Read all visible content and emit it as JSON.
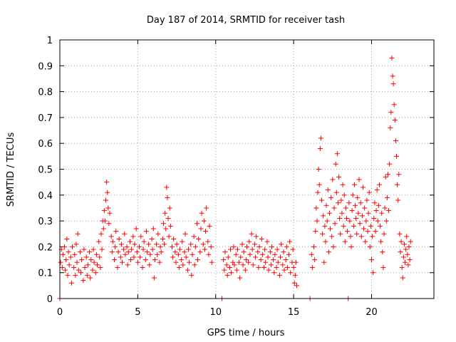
{
  "chart_data": {
    "type": "scatter",
    "title": "Day 187 of 2014, SRMTID for receiver tash",
    "xlabel": "GPS time / hours",
    "ylabel": "SRMTID / TECUs",
    "xlim": [
      0,
      24
    ],
    "ylim": [
      0,
      1
    ],
    "grid": true,
    "x_ticks": [
      {
        "value": 0,
        "label": "0"
      },
      {
        "value": 5,
        "label": "5"
      },
      {
        "value": 10,
        "label": "10"
      },
      {
        "value": 15,
        "label": "15"
      },
      {
        "value": 20,
        "label": "20"
      }
    ],
    "y_ticks": [
      {
        "value": 0,
        "label": "0"
      },
      {
        "value": 0.1,
        "label": "0.1"
      },
      {
        "value": 0.2,
        "label": "0.2"
      },
      {
        "value": 0.3,
        "label": "0.3"
      },
      {
        "value": 0.4,
        "label": "0.4"
      },
      {
        "value": 0.5,
        "label": "0.5"
      },
      {
        "value": 0.6,
        "label": "0.6"
      },
      {
        "value": 0.7,
        "label": "0.7"
      },
      {
        "value": 0.8,
        "label": "0.8"
      },
      {
        "value": 0.9,
        "label": "0.9"
      },
      {
        "value": 1,
        "label": "1"
      }
    ],
    "marker_color": "#ff0000",
    "marker": "plus",
    "points": [
      [
        0.0,
        0.0
      ],
      [
        0.05,
        0.14
      ],
      [
        0.1,
        0.19
      ],
      [
        0.15,
        0.12
      ],
      [
        0.2,
        0.17
      ],
      [
        0.3,
        0.2
      ],
      [
        0.35,
        0.11
      ],
      [
        0.4,
        0.15
      ],
      [
        0.45,
        0.23
      ],
      [
        0.5,
        0.09
      ],
      [
        0.55,
        0.18
      ],
      [
        0.6,
        0.13
      ],
      [
        0.7,
        0.16
      ],
      [
        0.75,
        0.06
      ],
      [
        0.8,
        0.2
      ],
      [
        0.9,
        0.12
      ],
      [
        0.95,
        0.17
      ],
      [
        1.0,
        0.09
      ],
      [
        1.05,
        0.21
      ],
      [
        1.1,
        0.14
      ],
      [
        1.15,
        0.25
      ],
      [
        1.2,
        0.11
      ],
      [
        1.3,
        0.18
      ],
      [
        1.35,
        0.1
      ],
      [
        1.4,
        0.15
      ],
      [
        1.5,
        0.07
      ],
      [
        1.55,
        0.19
      ],
      [
        1.6,
        0.12
      ],
      [
        1.7,
        0.16
      ],
      [
        1.75,
        0.09
      ],
      [
        1.8,
        0.13
      ],
      [
        1.9,
        0.18
      ],
      [
        1.95,
        0.08
      ],
      [
        2.0,
        0.15
      ],
      [
        2.1,
        0.11
      ],
      [
        2.15,
        0.19
      ],
      [
        2.2,
        0.14
      ],
      [
        2.3,
        0.1
      ],
      [
        2.35,
        0.17
      ],
      [
        2.4,
        0.13
      ],
      [
        2.5,
        0.22
      ],
      [
        2.55,
        0.16
      ],
      [
        2.6,
        0.12
      ],
      [
        2.65,
        0.25
      ],
      [
        2.7,
        0.19
      ],
      [
        2.75,
        0.3
      ],
      [
        2.8,
        0.27
      ],
      [
        2.85,
        0.34
      ],
      [
        2.9,
        0.3
      ],
      [
        2.95,
        0.38
      ],
      [
        3.0,
        0.45
      ],
      [
        3.05,
        0.41
      ],
      [
        3.1,
        0.35
      ],
      [
        3.15,
        0.29
      ],
      [
        3.2,
        0.33
      ],
      [
        3.3,
        0.24
      ],
      [
        3.35,
        0.18
      ],
      [
        3.4,
        0.22
      ],
      [
        3.5,
        0.15
      ],
      [
        3.55,
        0.2
      ],
      [
        3.6,
        0.26
      ],
      [
        3.7,
        0.12
      ],
      [
        3.75,
        0.18
      ],
      [
        3.8,
        0.23
      ],
      [
        3.9,
        0.16
      ],
      [
        3.95,
        0.21
      ],
      [
        4.0,
        0.14
      ],
      [
        4.1,
        0.19
      ],
      [
        4.15,
        0.25
      ],
      [
        4.2,
        0.17
      ],
      [
        4.3,
        0.2
      ],
      [
        4.35,
        0.13
      ],
      [
        4.4,
        0.18
      ],
      [
        4.5,
        0.22
      ],
      [
        4.55,
        0.15
      ],
      [
        4.6,
        0.19
      ],
      [
        4.7,
        0.24
      ],
      [
        4.75,
        0.16
      ],
      [
        4.8,
        0.21
      ],
      [
        4.9,
        0.27
      ],
      [
        4.95,
        0.18
      ],
      [
        5.0,
        0.14
      ],
      [
        5.1,
        0.2
      ],
      [
        5.15,
        0.16
      ],
      [
        5.2,
        0.24
      ],
      [
        5.3,
        0.12
      ],
      [
        5.35,
        0.19
      ],
      [
        5.4,
        0.22
      ],
      [
        5.5,
        0.15
      ],
      [
        5.55,
        0.26
      ],
      [
        5.6,
        0.18
      ],
      [
        5.7,
        0.21
      ],
      [
        5.75,
        0.13
      ],
      [
        5.8,
        0.17
      ],
      [
        5.9,
        0.23
      ],
      [
        5.95,
        0.19
      ],
      [
        6.0,
        0.27
      ],
      [
        6.05,
        0.08
      ],
      [
        6.1,
        0.15
      ],
      [
        6.2,
        0.21
      ],
      [
        6.25,
        0.17
      ],
      [
        6.3,
        0.25
      ],
      [
        6.4,
        0.14
      ],
      [
        6.45,
        0.2
      ],
      [
        6.5,
        0.18
      ],
      [
        6.6,
        0.23
      ],
      [
        6.65,
        0.29
      ],
      [
        6.7,
        0.21
      ],
      [
        6.75,
        0.33
      ],
      [
        6.8,
        0.27
      ],
      [
        6.85,
        0.43
      ],
      [
        6.9,
        0.39
      ],
      [
        6.95,
        0.31
      ],
      [
        7.0,
        0.24
      ],
      [
        7.05,
        0.35
      ],
      [
        7.1,
        0.28
      ],
      [
        7.2,
        0.2
      ],
      [
        7.25,
        0.16
      ],
      [
        7.3,
        0.23
      ],
      [
        7.4,
        0.18
      ],
      [
        7.45,
        0.14
      ],
      [
        7.5,
        0.21
      ],
      [
        7.6,
        0.17
      ],
      [
        7.65,
        0.12
      ],
      [
        7.7,
        0.19
      ],
      [
        7.8,
        0.15
      ],
      [
        7.85,
        0.22
      ],
      [
        7.9,
        0.13
      ],
      [
        8.0,
        0.18
      ],
      [
        8.05,
        0.25
      ],
      [
        8.1,
        0.16
      ],
      [
        8.2,
        0.11
      ],
      [
        8.25,
        0.19
      ],
      [
        8.3,
        0.14
      ],
      [
        8.4,
        0.21
      ],
      [
        8.45,
        0.09
      ],
      [
        8.5,
        0.17
      ],
      [
        8.6,
        0.24
      ],
      [
        8.65,
        0.13
      ],
      [
        8.7,
        0.2
      ],
      [
        8.8,
        0.29
      ],
      [
        8.85,
        0.15
      ],
      [
        8.9,
        0.23
      ],
      [
        9.0,
        0.18
      ],
      [
        9.05,
        0.27
      ],
      [
        9.1,
        0.33
      ],
      [
        9.2,
        0.21
      ],
      [
        9.25,
        0.3
      ],
      [
        9.3,
        0.19
      ],
      [
        9.35,
        0.26
      ],
      [
        9.4,
        0.35
      ],
      [
        9.5,
        0.22
      ],
      [
        9.55,
        0.17
      ],
      [
        9.6,
        0.28
      ],
      [
        9.7,
        0.2
      ],
      [
        9.75,
        0.14
      ],
      [
        10.4,
        0.0
      ],
      [
        10.5,
        0.15
      ],
      [
        10.55,
        0.11
      ],
      [
        10.6,
        0.18
      ],
      [
        10.7,
        0.13
      ],
      [
        10.75,
        0.09
      ],
      [
        10.8,
        0.16
      ],
      [
        10.9,
        0.12
      ],
      [
        10.95,
        0.19
      ],
      [
        11.0,
        0.1
      ],
      [
        11.1,
        0.14
      ],
      [
        11.15,
        0.2
      ],
      [
        11.2,
        0.13
      ],
      [
        11.3,
        0.17
      ],
      [
        11.35,
        0.11
      ],
      [
        11.4,
        0.19
      ],
      [
        11.5,
        0.14
      ],
      [
        11.55,
        0.08
      ],
      [
        11.6,
        0.16
      ],
      [
        11.7,
        0.21
      ],
      [
        11.75,
        0.13
      ],
      [
        11.8,
        0.18
      ],
      [
        11.9,
        0.11
      ],
      [
        11.95,
        0.15
      ],
      [
        12.0,
        0.2
      ],
      [
        12.1,
        0.14
      ],
      [
        12.15,
        0.22
      ],
      [
        12.2,
        0.17
      ],
      [
        12.3,
        0.25
      ],
      [
        12.35,
        0.19
      ],
      [
        12.4,
        0.13
      ],
      [
        12.5,
        0.21
      ],
      [
        12.55,
        0.16
      ],
      [
        12.6,
        0.24
      ],
      [
        12.7,
        0.18
      ],
      [
        12.75,
        0.12
      ],
      [
        12.8,
        0.2
      ],
      [
        12.9,
        0.15
      ],
      [
        12.95,
        0.23
      ],
      [
        13.0,
        0.17
      ],
      [
        13.1,
        0.12
      ],
      [
        13.15,
        0.19
      ],
      [
        13.2,
        0.14
      ],
      [
        13.3,
        0.22
      ],
      [
        13.35,
        0.16
      ],
      [
        13.4,
        0.11
      ],
      [
        13.5,
        0.18
      ],
      [
        13.55,
        0.13
      ],
      [
        13.6,
        0.2
      ],
      [
        13.7,
        0.15
      ],
      [
        13.75,
        0.1
      ],
      [
        13.8,
        0.17
      ],
      [
        13.9,
        0.12
      ],
      [
        13.95,
        0.19
      ],
      [
        14.0,
        0.14
      ],
      [
        14.1,
        0.09
      ],
      [
        14.15,
        0.16
      ],
      [
        14.2,
        0.21
      ],
      [
        14.3,
        0.13
      ],
      [
        14.35,
        0.18
      ],
      [
        14.4,
        0.11
      ],
      [
        14.5,
        0.15
      ],
      [
        14.55,
        0.2
      ],
      [
        14.6,
        0.12
      ],
      [
        14.7,
        0.17
      ],
      [
        14.75,
        0.22
      ],
      [
        14.8,
        0.1
      ],
      [
        14.9,
        0.14
      ],
      [
        14.95,
        0.19
      ],
      [
        15.0,
        0.12
      ],
      [
        15.05,
        0.06
      ],
      [
        15.1,
        0.09
      ],
      [
        15.15,
        0.14
      ],
      [
        15.2,
        0.05
      ],
      [
        16.05,
        0.0
      ],
      [
        16.15,
        0.17
      ],
      [
        16.2,
        0.12
      ],
      [
        16.3,
        0.2
      ],
      [
        16.35,
        0.15
      ],
      [
        16.4,
        0.26
      ],
      [
        16.45,
        0.35
      ],
      [
        16.5,
        0.3
      ],
      [
        16.55,
        0.41
      ],
      [
        16.6,
        0.5
      ],
      [
        16.65,
        0.44
      ],
      [
        16.7,
        0.58
      ],
      [
        16.75,
        0.62
      ],
      [
        16.8,
        0.38
      ],
      [
        16.85,
        0.25
      ],
      [
        16.9,
        0.32
      ],
      [
        16.95,
        0.14
      ],
      [
        17.0,
        0.28
      ],
      [
        17.05,
        0.22
      ],
      [
        17.1,
        0.36
      ],
      [
        17.15,
        0.3
      ],
      [
        17.2,
        0.42
      ],
      [
        17.25,
        0.18
      ],
      [
        17.3,
        0.33
      ],
      [
        17.35,
        0.27
      ],
      [
        17.4,
        0.39
      ],
      [
        17.45,
        0.24
      ],
      [
        17.5,
        0.46
      ],
      [
        17.55,
        0.2
      ],
      [
        17.6,
        0.35
      ],
      [
        17.65,
        0.29
      ],
      [
        17.7,
        0.52
      ],
      [
        17.75,
        0.41
      ],
      [
        17.8,
        0.56
      ],
      [
        17.85,
        0.37
      ],
      [
        17.9,
        0.47
      ],
      [
        17.95,
        0.31
      ],
      [
        18.0,
        0.25
      ],
      [
        18.05,
        0.38
      ],
      [
        18.1,
        0.33
      ],
      [
        18.15,
        0.44
      ],
      [
        18.2,
        0.28
      ],
      [
        18.25,
        0.4
      ],
      [
        18.3,
        0.22
      ],
      [
        18.35,
        0.35
      ],
      [
        18.4,
        0.31
      ],
      [
        18.45,
        0.26
      ],
      [
        18.5,
        0.0
      ],
      [
        18.55,
        0.37
      ],
      [
        18.6,
        0.3
      ],
      [
        18.65,
        0.24
      ],
      [
        18.7,
        0.2
      ],
      [
        18.75,
        0.34
      ],
      [
        18.8,
        0.4
      ],
      [
        18.85,
        0.28
      ],
      [
        18.9,
        0.44
      ],
      [
        18.95,
        0.36
      ],
      [
        19.0,
        0.31
      ],
      [
        19.05,
        0.25
      ],
      [
        19.1,
        0.39
      ],
      [
        19.15,
        0.33
      ],
      [
        19.2,
        0.46
      ],
      [
        19.25,
        0.29
      ],
      [
        19.3,
        0.37
      ],
      [
        19.35,
        0.24
      ],
      [
        19.4,
        0.32
      ],
      [
        19.45,
        0.43
      ],
      [
        19.5,
        0.27
      ],
      [
        19.55,
        0.35
      ],
      [
        19.6,
        0.22
      ],
      [
        19.65,
        0.3
      ],
      [
        19.7,
        0.38
      ],
      [
        19.75,
        0.26
      ],
      [
        19.8,
        0.33
      ],
      [
        19.85,
        0.41
      ],
      [
        19.9,
        0.2
      ],
      [
        19.95,
        0.28
      ],
      [
        20.0,
        0.15
      ],
      [
        20.05,
        0.24
      ],
      [
        20.1,
        0.1
      ],
      [
        20.15,
        0.31
      ],
      [
        20.2,
        0.37
      ],
      [
        20.25,
        0.26
      ],
      [
        20.3,
        0.34
      ],
      [
        20.35,
        0.42
      ],
      [
        20.4,
        0.3
      ],
      [
        20.45,
        0.36
      ],
      [
        20.5,
        0.44
      ],
      [
        20.55,
        0.28
      ],
      [
        20.6,
        0.22
      ],
      [
        20.65,
        0.33
      ],
      [
        20.7,
        0.18
      ],
      [
        20.75,
        0.12
      ],
      [
        20.8,
        0.25
      ],
      [
        20.85,
        0.35
      ],
      [
        20.9,
        0.47
      ],
      [
        20.95,
        0.3
      ],
      [
        21.0,
        0.39
      ],
      [
        21.05,
        0.48
      ],
      [
        21.1,
        0.34
      ],
      [
        21.15,
        0.52
      ],
      [
        21.2,
        0.66
      ],
      [
        21.25,
        0.72
      ],
      [
        21.3,
        0.93
      ],
      [
        21.35,
        0.86
      ],
      [
        21.4,
        0.83
      ],
      [
        21.45,
        0.75
      ],
      [
        21.5,
        0.69
      ],
      [
        21.55,
        0.61
      ],
      [
        21.6,
        0.55
      ],
      [
        21.65,
        0.44
      ],
      [
        21.7,
        0.38
      ],
      [
        21.75,
        0.48
      ],
      [
        21.8,
        0.25
      ],
      [
        21.85,
        0.18
      ],
      [
        21.9,
        0.22
      ],
      [
        21.95,
        0.12
      ],
      [
        22.0,
        0.08
      ],
      [
        22.05,
        0.16
      ],
      [
        22.1,
        0.21
      ],
      [
        22.15,
        0.14
      ],
      [
        22.2,
        0.19
      ],
      [
        22.25,
        0.24
      ],
      [
        22.3,
        0.17
      ],
      [
        22.35,
        0.13
      ],
      [
        22.4,
        0.2
      ],
      [
        22.45,
        0.15
      ],
      [
        22.5,
        0.22
      ]
    ]
  }
}
